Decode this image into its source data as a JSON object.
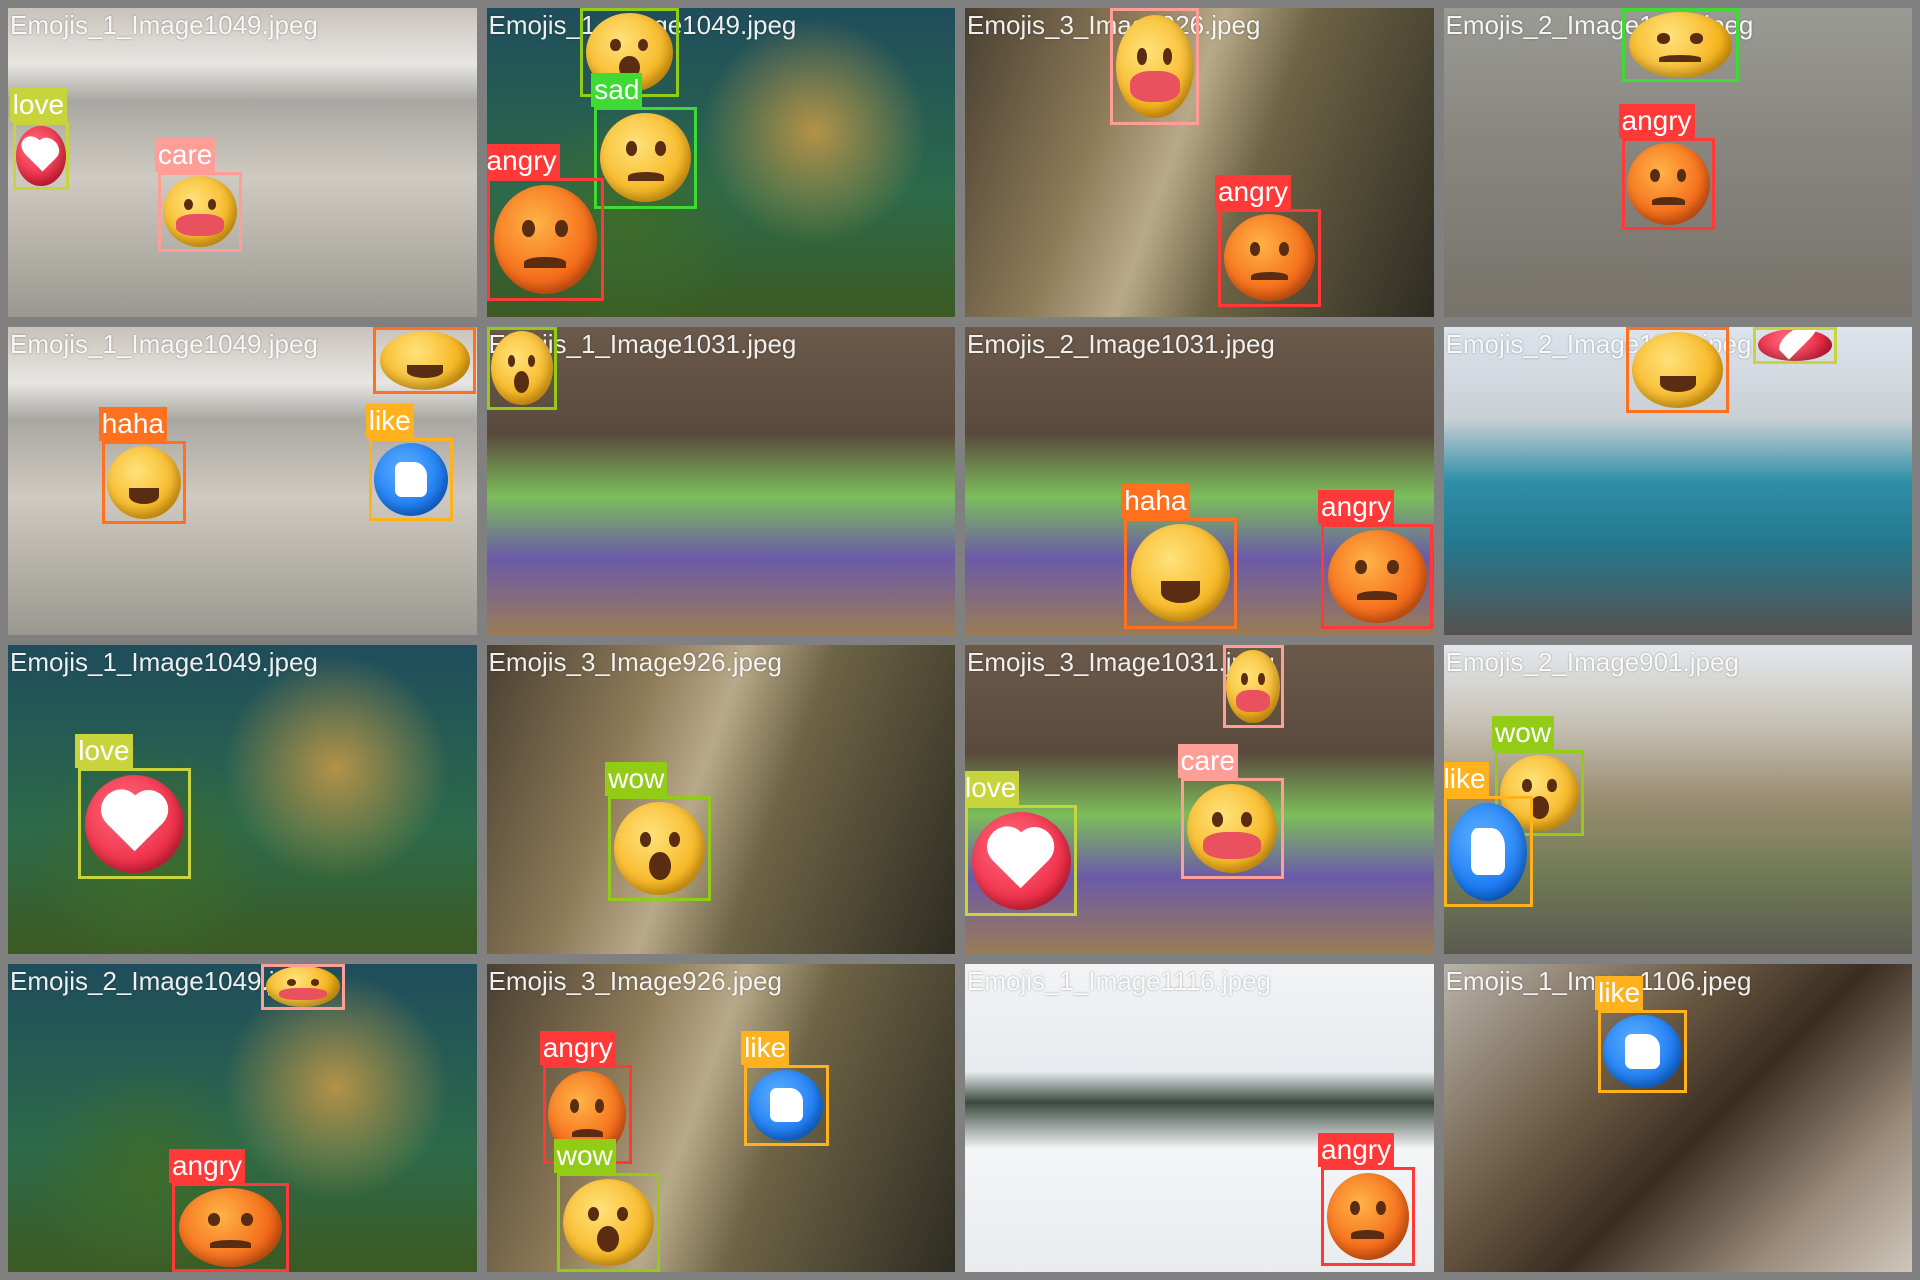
{
  "colors": {
    "love": "#c8d43c",
    "wow": "#92cc17",
    "sad": "#3ddb34",
    "angry": "#ff3838",
    "care": "#ff9d97",
    "haha": "#ff701f",
    "like": "#ffb21d",
    "background": "#808080"
  },
  "tiles": [
    {
      "title": "Emojis_1_Image1049.jpeg",
      "scene": "bus-station",
      "detections": [
        {
          "label": "love",
          "emoji": "red-heart"
        },
        {
          "label": "care",
          "emoji": "yellow-care"
        }
      ]
    },
    {
      "title": "Emojis_1_Image1049.jpeg",
      "scene": "aquarium",
      "detections": [
        {
          "label": "wow",
          "emoji": "yellow-wow"
        },
        {
          "label": "sad",
          "emoji": "yellow-sad"
        },
        {
          "label": "angry",
          "emoji": "orange-angry"
        }
      ]
    },
    {
      "title": "Emojis_3_Image926.jpeg",
      "scene": "teddy-bear-street",
      "detections": [
        {
          "label": "care",
          "emoji": "yellow-care"
        },
        {
          "label": "angry",
          "emoji": "orange-angry"
        }
      ]
    },
    {
      "title": "Emojis_2_Image1017.jpeg",
      "scene": "leafy-street",
      "detections": [
        {
          "label": "sad",
          "emoji": "yellow-sad"
        },
        {
          "label": "angry",
          "emoji": "orange-angry"
        }
      ]
    },
    {
      "title": "Emojis_1_Image1049.jpeg",
      "scene": "bus-station",
      "detections": [
        {
          "label": "haha",
          "emoji": "yellow-haha"
        },
        {
          "label": "haha",
          "emoji": "yellow-haha"
        },
        {
          "label": "like",
          "emoji": "blue-like"
        }
      ]
    },
    {
      "title": "Emojis_1_Image1031.jpeg",
      "scene": "kids-party",
      "detections": [
        {
          "label": "wow",
          "emoji": "yellow-wow"
        }
      ]
    },
    {
      "title": "Emojis_2_Image1031.jpeg",
      "scene": "kids-party",
      "detections": [
        {
          "label": "haha",
          "emoji": "yellow-haha"
        },
        {
          "label": "angry",
          "emoji": "orange-angry"
        }
      ]
    },
    {
      "title": "Emojis_2_Image1138.jpeg",
      "scene": "blue-bus",
      "detections": [
        {
          "label": "haha",
          "emoji": "yellow-haha"
        },
        {
          "label": "love",
          "emoji": "red-heart"
        }
      ]
    },
    {
      "title": "Emojis_1_Image1049.jpeg",
      "scene": "aquarium",
      "detections": [
        {
          "label": "love",
          "emoji": "red-heart"
        }
      ]
    },
    {
      "title": "Emojis_3_Image926.jpeg",
      "scene": "teddy-bear-street",
      "detections": [
        {
          "label": "wow",
          "emoji": "yellow-wow"
        }
      ]
    },
    {
      "title": "Emojis_3_Image1031.jpeg",
      "scene": "kids-party",
      "detections": [
        {
          "label": "care",
          "emoji": "yellow-care"
        },
        {
          "label": "care",
          "emoji": "yellow-care"
        },
        {
          "label": "love",
          "emoji": "red-heart"
        }
      ]
    },
    {
      "title": "Emojis_2_Image901.jpeg",
      "scene": "train-tracks",
      "detections": [
        {
          "label": "wow",
          "emoji": "yellow-wow"
        },
        {
          "label": "like",
          "emoji": "blue-like"
        }
      ]
    },
    {
      "title": "Emojis_2_Image1049.jpeg",
      "scene": "aquarium",
      "detections": [
        {
          "label": "care",
          "emoji": "yellow-care"
        },
        {
          "label": "angry",
          "emoji": "orange-angry"
        }
      ]
    },
    {
      "title": "Emojis_3_Image926.jpeg",
      "scene": "teddy-bear-street",
      "detections": [
        {
          "label": "angry",
          "emoji": "orange-angry"
        },
        {
          "label": "like",
          "emoji": "blue-like"
        },
        {
          "label": "wow",
          "emoji": "yellow-wow"
        }
      ]
    },
    {
      "title": "Emojis_1_Image1116.jpeg",
      "scene": "snowboarder",
      "detections": [
        {
          "label": "angry",
          "emoji": "orange-angry"
        }
      ]
    },
    {
      "title": "Emojis_1_Image1106.jpeg",
      "scene": "grilled-fish",
      "detections": [
        {
          "label": "like",
          "emoji": "blue-like"
        }
      ]
    }
  ]
}
